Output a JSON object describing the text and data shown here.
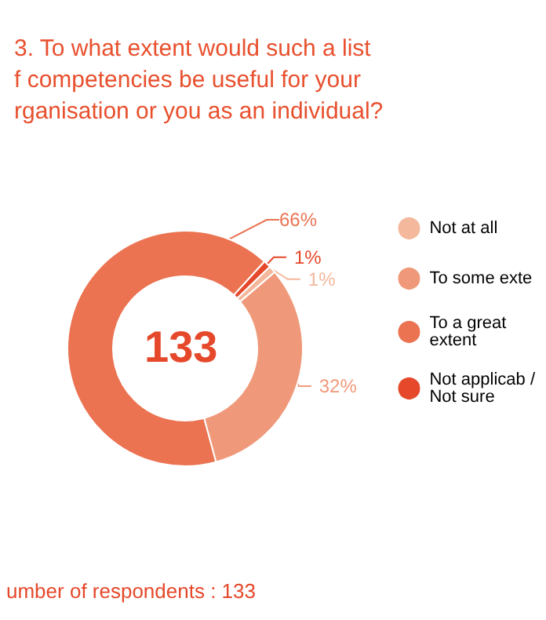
{
  "chart_data": {
    "type": "donut",
    "title": "3. To what extent would such a list\nf competencies be useful for your\nrganisation or you as an individual?",
    "categories": [
      "Not at all",
      "To some exte",
      "To a great extent",
      "Not applicab /Not sure"
    ],
    "values": [
      1,
      32,
      66,
      1
    ],
    "colors": [
      "#f4b89c",
      "#f0997a",
      "#eb7352",
      "#e5482a"
    ],
    "legend": "right",
    "value_labels": [
      "1%",
      "32%",
      "66%",
      "1%"
    ],
    "annotations": [
      "133",
      "umber of respondents : 133"
    ]
  }
}
